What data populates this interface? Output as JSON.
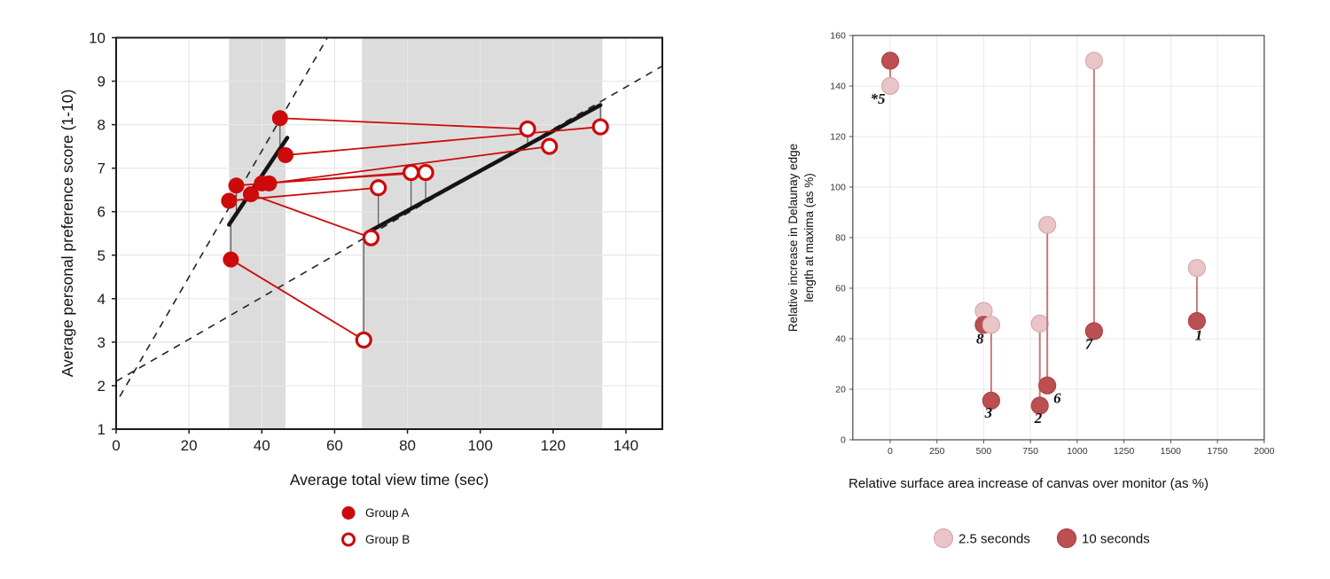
{
  "colors": {
    "left_red": "#cc0a0a",
    "left_trend": "#141414",
    "left_dashed": "#222222",
    "left_band": "#dcdcdc",
    "left_grid": "#e7e7e7",
    "left_border": "#1a1a1a",
    "residual": "#4a4a4a",
    "right_light": "#e9c5c8",
    "right_light_stroke": "#d9a9ad",
    "right_dark": "#bb4f52",
    "right_dark_stroke": "#ad4346",
    "right_stem": "#c9797d",
    "right_grid": "#e8e8e8",
    "right_border": "#555555"
  },
  "chart_data": [
    {
      "type": "scatter",
      "title": "",
      "xlabel": "Average total view time (sec)",
      "ylabel": "Average personal preference score (1-10)",
      "xlim": [
        0,
        150
      ],
      "ylim": [
        1,
        10
      ],
      "xticks": [
        0,
        20,
        40,
        60,
        80,
        100,
        120,
        140
      ],
      "yticks": [
        1,
        2,
        3,
        4,
        5,
        6,
        7,
        8,
        9,
        10
      ],
      "grid": true,
      "shaded_bands": [
        [
          31,
          46.5
        ],
        [
          67.5,
          133.5
        ]
      ],
      "dashed_lines": [
        {
          "from": [
            1,
            1.75
          ],
          "to": [
            58,
            10
          ]
        },
        {
          "from": [
            0,
            2.1
          ],
          "to": [
            150,
            9.35
          ]
        }
      ],
      "trend_segments": [
        {
          "from": [
            31,
            5.7
          ],
          "to": [
            47,
            7.7
          ]
        },
        {
          "from": [
            69,
            5.52
          ],
          "to": [
            133,
            8.45
          ]
        }
      ],
      "legend": [
        {
          "label": "Group A",
          "marker": "filled"
        },
        {
          "label": "Group B",
          "marker": "open"
        }
      ],
      "series": [
        {
          "name": "Group A",
          "marker": "filled",
          "points": [
            [
              45,
              8.15
            ],
            [
              46.5,
              7.3
            ],
            [
              42,
              6.65
            ],
            [
              40,
              6.65
            ],
            [
              33,
              6.6
            ],
            [
              31,
              6.25
            ],
            [
              37,
              6.4
            ],
            [
              31.5,
              4.9
            ]
          ]
        },
        {
          "name": "Group B",
          "marker": "open",
          "points": [
            [
              113,
              7.9
            ],
            [
              133,
              7.95
            ],
            [
              119,
              7.5
            ],
            [
              85,
              6.9
            ],
            [
              81,
              6.9
            ],
            [
              72,
              6.55
            ],
            [
              70,
              5.4
            ],
            [
              68,
              3.05
            ]
          ]
        }
      ],
      "pairs": [
        {
          "a": [
            45,
            8.15
          ],
          "b": [
            113,
            7.9
          ]
        },
        {
          "a": [
            46.5,
            7.3
          ],
          "b": [
            133,
            7.95
          ]
        },
        {
          "a": [
            42,
            6.65
          ],
          "b": [
            119,
            7.5
          ]
        },
        {
          "a": [
            40,
            6.65
          ],
          "b": [
            85,
            6.9
          ]
        },
        {
          "a": [
            33,
            6.6
          ],
          "b": [
            81,
            6.9
          ]
        },
        {
          "a": [
            31,
            6.25
          ],
          "b": [
            72,
            6.55
          ]
        },
        {
          "a": [
            37,
            6.4
          ],
          "b": [
            70,
            5.4
          ]
        },
        {
          "a": [
            31.5,
            4.9
          ],
          "b": [
            68,
            3.05
          ]
        }
      ],
      "residuals": [
        {
          "x": 45,
          "y1": 8.15,
          "y2": 7.47
        },
        {
          "x": 33,
          "y1": 6.6,
          "y2": 5.95
        },
        {
          "x": 31.5,
          "y1": 4.9,
          "y2": 5.76
        },
        {
          "x": 68,
          "y1": 3.05,
          "y2": 5.5
        },
        {
          "x": 72,
          "y1": 6.55,
          "y2": 5.68
        },
        {
          "x": 81,
          "y1": 6.9,
          "y2": 6.09
        },
        {
          "x": 85,
          "y1": 6.9,
          "y2": 6.27
        },
        {
          "x": 113,
          "y1": 7.9,
          "y2": 7.54
        },
        {
          "x": 133,
          "y1": 7.95,
          "y2": 8.45
        }
      ]
    },
    {
      "type": "scatter",
      "title": "",
      "xlabel": "Relative surface area increase of canvas over monitor (as %)",
      "ylabel_lines": [
        "Relative increase in Delaunay edge",
        "length at maxima (as %)"
      ],
      "xlim": [
        -200,
        2000
      ],
      "ylim": [
        0,
        160
      ],
      "xticks": [
        0,
        250,
        500,
        750,
        1000,
        1250,
        1500,
        1750,
        2000
      ],
      "yticks": [
        0,
        20,
        40,
        60,
        80,
        100,
        120,
        140,
        160
      ],
      "grid": true,
      "legend": [
        {
          "label": "2.5 seconds",
          "color": "light"
        },
        {
          "label": "10 seconds",
          "color": "dark"
        }
      ],
      "pairs": [
        {
          "id": "*5",
          "x": 0,
          "s25": 140,
          "s10": 150,
          "label": {
            "text": "*5",
            "lx": -66,
            "ly": 133
          }
        },
        {
          "id": "8",
          "x": 500,
          "s25": 51,
          "s10": 45.5,
          "label": {
            "text": "8",
            "lx": 480,
            "ly": 38
          }
        },
        {
          "id": "3",
          "x": 540,
          "s25": 45.5,
          "s10": 15.5,
          "label": {
            "text": "3",
            "lx": 526,
            "ly": 8.8
          }
        },
        {
          "id": "2",
          "x": 800,
          "s25": 46,
          "s10": 13.5,
          "label": {
            "text": "2",
            "lx": 792,
            "ly": 6.7
          }
        },
        {
          "id": "6",
          "x": 840,
          "s25": 85,
          "s10": 21.5,
          "label": {
            "text": "6",
            "lx": 893,
            "ly": 14.5
          }
        },
        {
          "id": "7",
          "x": 1090,
          "s25": 150,
          "s10": 43,
          "label": {
            "text": "7",
            "lx": 1062,
            "ly": 36
          }
        },
        {
          "id": "1",
          "x": 1640,
          "s25": 68,
          "s10": 47,
          "label": {
            "text": "1",
            "lx": 1650,
            "ly": 39.5
          }
        }
      ]
    }
  ]
}
